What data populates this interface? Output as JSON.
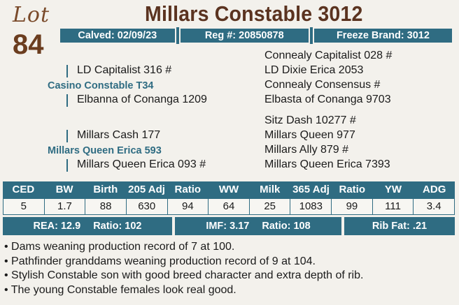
{
  "lot": {
    "word": "Lot",
    "number": "84"
  },
  "title": "Millars Constable 3012",
  "info": {
    "calved": "Calved: 02/09/23",
    "reg": "Reg #: 20850878",
    "freeze_brand": "Freeze Brand: 3012"
  },
  "pedigree": {
    "sire": "Casino Constable T34",
    "sire_sire": "LD Capitalist 316 #",
    "sire_dam": "Elbanna of Conanga 1209",
    "sss": "Connealy Capitalist 028 #",
    "ssd": "LD Dixie Erica 2053",
    "sds": "Connealy Consensus #",
    "sdd": "Elbasta of Conanga 9703",
    "dam": "Millars Queen Erica 593",
    "dam_sire": "Millars Cash 177",
    "dam_dam": "Millars Queen Erica 093 #",
    "dss": "Sitz Dash 10277 #",
    "dsd": "Millars Queen 977",
    "dds": "Millars Ally 879 #",
    "ddd": "Millars Queen Erica 7393"
  },
  "epd": {
    "headers": [
      "CED",
      "BW",
      "Birth",
      "205 Adj",
      "Ratio",
      "WW",
      "Milk",
      "365 Adj",
      "Ratio",
      "YW",
      "ADG"
    ],
    "values": [
      "5",
      "1.7",
      "88",
      "630",
      "94",
      "64",
      "25",
      "1083",
      "99",
      "111",
      "3.4"
    ]
  },
  "carcass": {
    "rea": "REA: 12.9",
    "rea_ratio": "Ratio: 102",
    "imf": "IMF: 3.17",
    "imf_ratio": "Ratio: 108",
    "rib_fat": "Rib Fat: .21"
  },
  "notes": [
    "• Dams weaning production record of 7 at 100.",
    "• Pathfinder granddams weaning production record of 9 at 104.",
    "• Stylish Constable son with good breed character and extra depth of rib.",
    "• The young Constable females look real good."
  ],
  "colors": {
    "accent": "#2f6c82",
    "brown": "#6b3d1f",
    "background": "#f3f1ec"
  }
}
